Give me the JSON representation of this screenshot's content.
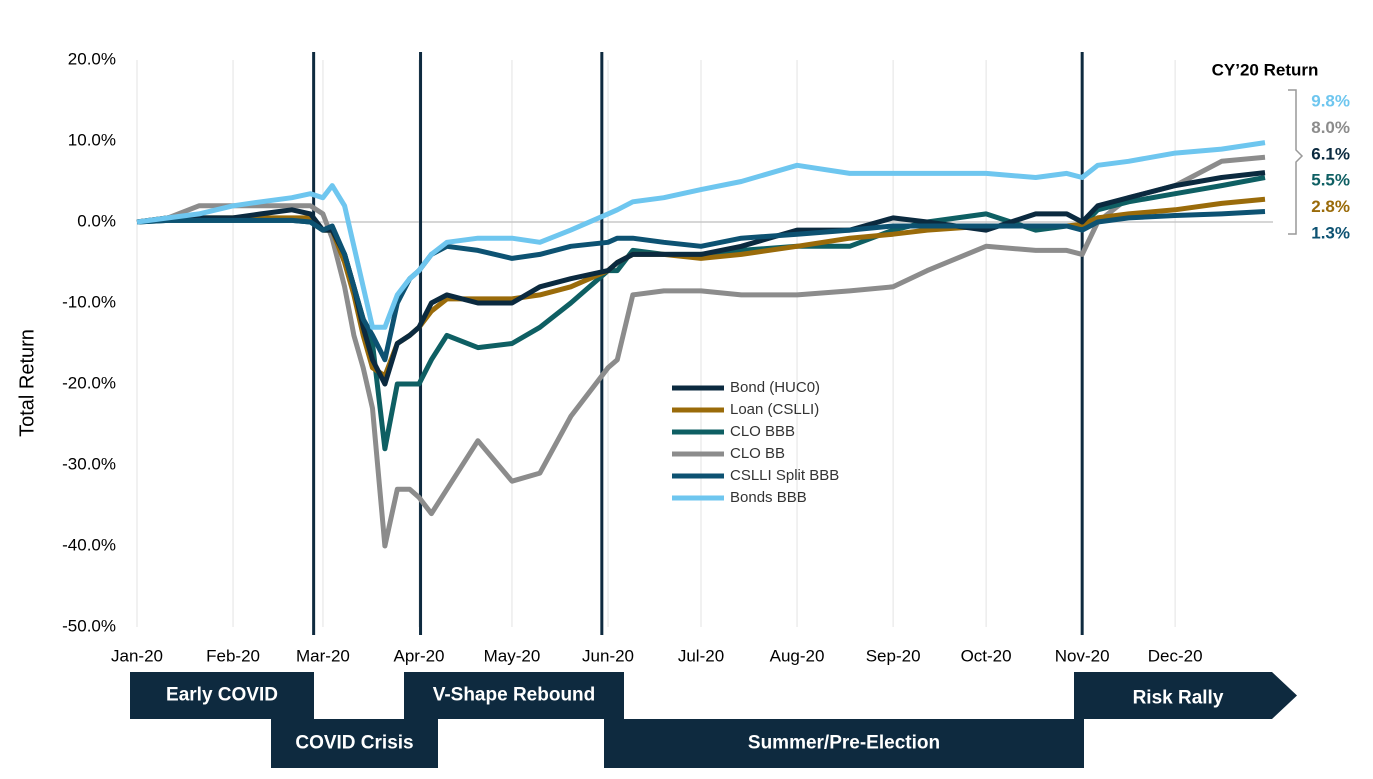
{
  "chart_data": {
    "type": "line",
    "y_label": "Total Return",
    "x": [
      0,
      10,
      20,
      31,
      40,
      50,
      56,
      60,
      63,
      67,
      70,
      73,
      76,
      80,
      84,
      88,
      91,
      95,
      100,
      110,
      121,
      130,
      140,
      152,
      155,
      160,
      170,
      182,
      195,
      213,
      230,
      244,
      255,
      274,
      290,
      300,
      305,
      310,
      320,
      335,
      350,
      364
    ],
    "xlim": [
      0,
      364
    ],
    "xticks": [
      {
        "value": 0,
        "label": "Jan-20"
      },
      {
        "value": 31,
        "label": "Feb-20"
      },
      {
        "value": 60,
        "label": "Mar-20"
      },
      {
        "value": 91,
        "label": "Apr-20"
      },
      {
        "value": 121,
        "label": "May-20"
      },
      {
        "value": 152,
        "label": "Jun-20"
      },
      {
        "value": 182,
        "label": "Jul-20"
      },
      {
        "value": 213,
        "label": "Aug-20"
      },
      {
        "value": 244,
        "label": "Sep-20"
      },
      {
        "value": 274,
        "label": "Oct-20"
      },
      {
        "value": 305,
        "label": "Nov-20"
      },
      {
        "value": 335,
        "label": "Dec-20"
      }
    ],
    "ylim": [
      -50,
      20
    ],
    "yticks": [
      {
        "value": 20,
        "label": "20.0%"
      },
      {
        "value": 10,
        "label": "10.0%"
      },
      {
        "value": 0,
        "label": "0.0%"
      },
      {
        "value": -10,
        "label": "-10.0%"
      },
      {
        "value": -20,
        "label": "-20.0%"
      },
      {
        "value": -30,
        "label": "-30.0%"
      },
      {
        "value": -40,
        "label": "-40.0%"
      },
      {
        "value": -50,
        "label": "-50.0%"
      }
    ],
    "grid": "x",
    "event_lines": [
      57,
      91.5,
      150,
      305
    ],
    "end_labels_title": "CY’20 Return",
    "series": [
      {
        "name": "Bond (HUC0)",
        "color": "#0b2a3f",
        "end_label": "6.1%",
        "values": [
          0,
          0.5,
          0.5,
          0.5,
          1,
          1.5,
          1,
          -1,
          -1,
          -4,
          -8,
          -13,
          -17,
          -20,
          -15,
          -14,
          -13,
          -10,
          -9,
          -10,
          -10,
          -8,
          -7,
          -6,
          -5,
          -4,
          -4,
          -4,
          -3,
          -1,
          -1,
          0.5,
          0,
          -1,
          1,
          1,
          0,
          2,
          3,
          4.5,
          5.5,
          6.1
        ]
      },
      {
        "name": "Loan (CSLLI)",
        "color": "#9a6b0a",
        "end_label": "2.8%",
        "values": [
          0,
          0.5,
          0.5,
          0.5,
          0.5,
          0.5,
          0.5,
          -1,
          -1,
          -5,
          -9,
          -14,
          -18,
          -19,
          -15,
          -14,
          -13,
          -11,
          -9.5,
          -9.5,
          -9.5,
          -9,
          -8,
          -6,
          -5,
          -4,
          -4,
          -4.5,
          -4,
          -3,
          -2,
          -1.5,
          -1,
          -0.5,
          -0.5,
          -0.5,
          -0.3,
          0.5,
          1,
          1.5,
          2.3,
          2.8
        ]
      },
      {
        "name": "CLO BBB",
        "color": "#0e5f63",
        "end_label": "5.5%",
        "values": [
          0,
          0.2,
          0.2,
          0.2,
          0.2,
          0.2,
          0,
          -1,
          -1,
          -4,
          -8,
          -12,
          -15,
          -28,
          -20,
          -20,
          -20,
          -17,
          -14,
          -15.5,
          -15,
          -13,
          -10,
          -6,
          -6,
          -3.5,
          -4,
          -4,
          -3.5,
          -3,
          -3,
          -1,
          0,
          1,
          -1,
          -0.5,
          -0.5,
          1.5,
          2.5,
          3.5,
          4.5,
          5.5
        ]
      },
      {
        "name": "CLO BB",
        "color": "#8c8c8c",
        "end_label": "8.0%",
        "values": [
          0,
          0.5,
          2,
          2,
          2,
          2,
          2,
          1,
          -2,
          -8,
          -14,
          -18,
          -23,
          -40,
          -33,
          -33,
          -34,
          -36,
          -33,
          -27,
          -32,
          -31,
          -24,
          -18,
          -17,
          -9,
          -8.5,
          -8.5,
          -9,
          -9,
          -8.5,
          -8,
          -6,
          -3,
          -3.5,
          -3.5,
          -4,
          0,
          3,
          4.5,
          7.5,
          8
        ]
      },
      {
        "name": "CSLLI Split BBB",
        "color": "#0d5272",
        "end_label": "1.3%",
        "values": [
          0,
          0.2,
          0.2,
          0.2,
          0.2,
          0.2,
          0,
          -1,
          -0.5,
          -4,
          -8,
          -12,
          -14,
          -17,
          -10,
          -7,
          -6,
          -4,
          -3,
          -3.5,
          -4.5,
          -4,
          -3,
          -2.5,
          -2,
          -2,
          -2.5,
          -3,
          -2,
          -1.5,
          -1,
          -0.5,
          -0.5,
          -0.5,
          -0.5,
          -0.5,
          -1,
          0,
          0.5,
          0.8,
          1,
          1.3
        ]
      },
      {
        "name": "Bonds BBB",
        "color": "#6ec6ef",
        "end_label": "9.8%",
        "values": [
          0,
          0.5,
          1,
          2,
          2.5,
          3,
          3.5,
          3,
          4.5,
          2,
          -3,
          -8,
          -13,
          -13,
          -9,
          -7,
          -6,
          -4,
          -2.5,
          -2,
          -2,
          -2.5,
          -1,
          1,
          1.5,
          2.5,
          3,
          4,
          5,
          7,
          6,
          6,
          6,
          6,
          5.5,
          6,
          5.5,
          7,
          7.5,
          8.5,
          9,
          9.8
        ]
      }
    ],
    "phases": [
      "Early COVID",
      "COVID Crisis",
      "V-Shape Rebound",
      "Summer/Pre-Election",
      "Risk Rally"
    ]
  }
}
